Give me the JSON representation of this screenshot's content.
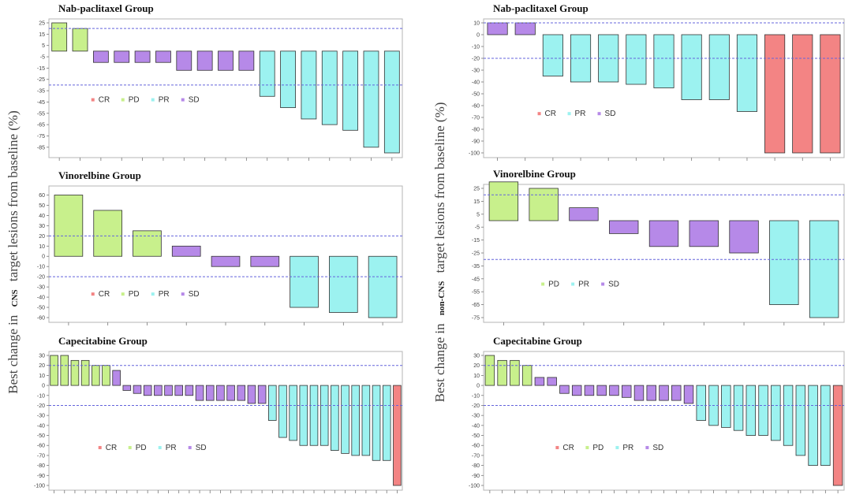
{
  "figure": {
    "left_ylabel": {
      "prefix": "Best change in",
      "emph": "CNS",
      "suffix": "target lesions from baseline (%)"
    },
    "right_ylabel": {
      "prefix": "Best change in",
      "emph": "non-CNS",
      "suffix": "target lesions from baseline (%)"
    }
  },
  "colors": {
    "CR": "#f38484",
    "PD": "#c8f08c",
    "PR": "#9cf2f0",
    "SD": "#b689e8",
    "threshold": "#6464dc"
  },
  "chart_data": [
    {
      "id": "cns-nab",
      "type": "bar",
      "title": "Nab-paclitaxel Group",
      "ylim": [
        -90,
        25
      ],
      "yticks": [
        25,
        15,
        5,
        -5,
        -15,
        -25,
        -35,
        -45,
        -55,
        -65,
        -75,
        -85
      ],
      "thresholds": [
        20,
        -30
      ],
      "legend": [
        "CR",
        "PD",
        "PR",
        "SD"
      ],
      "bars": [
        {
          "value": 25,
          "response": "PD"
        },
        {
          "value": 20,
          "response": "PD"
        },
        {
          "value": -10,
          "response": "SD"
        },
        {
          "value": -10,
          "response": "SD"
        },
        {
          "value": -10,
          "response": "SD"
        },
        {
          "value": -10,
          "response": "SD"
        },
        {
          "value": -17,
          "response": "SD"
        },
        {
          "value": -17,
          "response": "SD"
        },
        {
          "value": -17,
          "response": "SD"
        },
        {
          "value": -17,
          "response": "SD"
        },
        {
          "value": -40,
          "response": "PR"
        },
        {
          "value": -50,
          "response": "PR"
        },
        {
          "value": -60,
          "response": "PR"
        },
        {
          "value": -65,
          "response": "PR"
        },
        {
          "value": -70,
          "response": "PR"
        },
        {
          "value": -85,
          "response": "PR"
        },
        {
          "value": -90,
          "response": "PR"
        }
      ]
    },
    {
      "id": "cns-vin",
      "type": "bar",
      "title": "Vinorelbine Group",
      "ylim": [
        -60,
        65
      ],
      "yticks": [
        60,
        50,
        40,
        30,
        20,
        10,
        0,
        -10,
        -20,
        -30,
        -40,
        -50,
        -60
      ],
      "thresholds": [
        20,
        -20
      ],
      "legend": [
        "CR",
        "PD",
        "PR",
        "SD"
      ],
      "bars": [
        {
          "value": 60,
          "response": "PD"
        },
        {
          "value": 45,
          "response": "PD"
        },
        {
          "value": 25,
          "response": "PD"
        },
        {
          "value": 10,
          "response": "SD"
        },
        {
          "value": -10,
          "response": "SD"
        },
        {
          "value": -10,
          "response": "SD"
        },
        {
          "value": -50,
          "response": "PR"
        },
        {
          "value": -55,
          "response": "PR"
        },
        {
          "value": -60,
          "response": "PR"
        }
      ]
    },
    {
      "id": "cns-cap",
      "type": "bar",
      "title": "Capecitabine Group",
      "ylim": [
        -100,
        30
      ],
      "yticks": [
        30,
        20,
        10,
        0,
        -10,
        -20,
        -30,
        -40,
        -50,
        -60,
        -70,
        -80,
        -90,
        -100
      ],
      "thresholds": [
        20,
        -20
      ],
      "legend": [
        "CR",
        "PD",
        "PR",
        "SD"
      ],
      "bars": [
        {
          "value": 30,
          "response": "PD"
        },
        {
          "value": 30,
          "response": "PD"
        },
        {
          "value": 25,
          "response": "PD"
        },
        {
          "value": 25,
          "response": "PD"
        },
        {
          "value": 20,
          "response": "PD"
        },
        {
          "value": 20,
          "response": "PD"
        },
        {
          "value": 15,
          "response": "SD"
        },
        {
          "value": -5,
          "response": "SD"
        },
        {
          "value": -8,
          "response": "SD"
        },
        {
          "value": -10,
          "response": "SD"
        },
        {
          "value": -10,
          "response": "SD"
        },
        {
          "value": -10,
          "response": "SD"
        },
        {
          "value": -10,
          "response": "SD"
        },
        {
          "value": -10,
          "response": "SD"
        },
        {
          "value": -15,
          "response": "SD"
        },
        {
          "value": -15,
          "response": "SD"
        },
        {
          "value": -15,
          "response": "SD"
        },
        {
          "value": -15,
          "response": "SD"
        },
        {
          "value": -15,
          "response": "SD"
        },
        {
          "value": -18,
          "response": "SD"
        },
        {
          "value": -18,
          "response": "SD"
        },
        {
          "value": -35,
          "response": "PR"
        },
        {
          "value": -52,
          "response": "PR"
        },
        {
          "value": -55,
          "response": "PR"
        },
        {
          "value": -60,
          "response": "PR"
        },
        {
          "value": -60,
          "response": "PR"
        },
        {
          "value": -60,
          "response": "PR"
        },
        {
          "value": -65,
          "response": "PR"
        },
        {
          "value": -68,
          "response": "PR"
        },
        {
          "value": -70,
          "response": "PR"
        },
        {
          "value": -70,
          "response": "PR"
        },
        {
          "value": -75,
          "response": "PR"
        },
        {
          "value": -75,
          "response": "PR"
        },
        {
          "value": -100,
          "response": "CR"
        }
      ]
    },
    {
      "id": "noncns-nab",
      "type": "bar",
      "title": "Nab-paclitaxel Group",
      "ylim": [
        -100,
        10
      ],
      "yticks": [
        10,
        0,
        -10,
        -20,
        -30,
        -40,
        -50,
        -60,
        -70,
        -80,
        -90,
        -100
      ],
      "thresholds": [
        10,
        -20
      ],
      "legend": [
        "CR",
        "PR",
        "SD"
      ],
      "bars": [
        {
          "value": 10,
          "response": "SD"
        },
        {
          "value": 10,
          "response": "SD"
        },
        {
          "value": -35,
          "response": "PR"
        },
        {
          "value": -40,
          "response": "PR"
        },
        {
          "value": -40,
          "response": "PR"
        },
        {
          "value": -42,
          "response": "PR"
        },
        {
          "value": -45,
          "response": "PR"
        },
        {
          "value": -55,
          "response": "PR"
        },
        {
          "value": -55,
          "response": "PR"
        },
        {
          "value": -65,
          "response": "PR"
        },
        {
          "value": -100,
          "response": "CR"
        },
        {
          "value": -100,
          "response": "CR"
        },
        {
          "value": -100,
          "response": "CR"
        }
      ]
    },
    {
      "id": "noncns-vin",
      "type": "bar",
      "title": "Vinorelbine Group",
      "ylim": [
        -75,
        25
      ],
      "yticks": [
        25,
        15,
        5,
        -5,
        -15,
        -25,
        -35,
        -45,
        -55,
        -65,
        -75
      ],
      "thresholds": [
        20,
        -30
      ],
      "legend": [
        "PD",
        "PR",
        "SD"
      ],
      "bars": [
        {
          "value": 30,
          "response": "PD"
        },
        {
          "value": 25,
          "response": "PD"
        },
        {
          "value": 10,
          "response": "SD"
        },
        {
          "value": -10,
          "response": "SD"
        },
        {
          "value": -20,
          "response": "SD"
        },
        {
          "value": -20,
          "response": "SD"
        },
        {
          "value": -25,
          "response": "SD"
        },
        {
          "value": -65,
          "response": "PR"
        },
        {
          "value": -75,
          "response": "PR"
        }
      ]
    },
    {
      "id": "noncns-cap",
      "type": "bar",
      "title": "Capecitabine Group",
      "ylim": [
        -100,
        30
      ],
      "yticks": [
        30,
        20,
        10,
        0,
        -10,
        -20,
        -30,
        -40,
        -50,
        -60,
        -70,
        -80,
        -90,
        -100
      ],
      "thresholds": [
        20,
        -20
      ],
      "legend": [
        "CR",
        "PD",
        "PR",
        "SD"
      ],
      "bars": [
        {
          "value": 30,
          "response": "PD"
        },
        {
          "value": 25,
          "response": "PD"
        },
        {
          "value": 25,
          "response": "PD"
        },
        {
          "value": 20,
          "response": "PD"
        },
        {
          "value": 8,
          "response": "SD"
        },
        {
          "value": 8,
          "response": "SD"
        },
        {
          "value": -8,
          "response": "SD"
        },
        {
          "value": -10,
          "response": "SD"
        },
        {
          "value": -10,
          "response": "SD"
        },
        {
          "value": -10,
          "response": "SD"
        },
        {
          "value": -10,
          "response": "SD"
        },
        {
          "value": -12,
          "response": "SD"
        },
        {
          "value": -15,
          "response": "SD"
        },
        {
          "value": -15,
          "response": "SD"
        },
        {
          "value": -15,
          "response": "SD"
        },
        {
          "value": -15,
          "response": "SD"
        },
        {
          "value": -18,
          "response": "SD"
        },
        {
          "value": -35,
          "response": "PR"
        },
        {
          "value": -40,
          "response": "PR"
        },
        {
          "value": -42,
          "response": "PR"
        },
        {
          "value": -45,
          "response": "PR"
        },
        {
          "value": -50,
          "response": "PR"
        },
        {
          "value": -50,
          "response": "PR"
        },
        {
          "value": -55,
          "response": "PR"
        },
        {
          "value": -60,
          "response": "PR"
        },
        {
          "value": -70,
          "response": "PR"
        },
        {
          "value": -80,
          "response": "PR"
        },
        {
          "value": -80,
          "response": "PR"
        },
        {
          "value": -100,
          "response": "CR"
        }
      ]
    }
  ]
}
